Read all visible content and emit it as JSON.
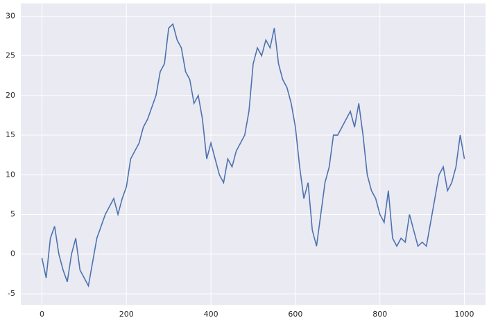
{
  "chart_data": {
    "type": "line",
    "x": [
      0,
      10,
      20,
      30,
      40,
      50,
      60,
      70,
      80,
      90,
      100,
      110,
      120,
      130,
      140,
      150,
      160,
      170,
      180,
      190,
      200,
      210,
      220,
      230,
      240,
      250,
      260,
      270,
      280,
      290,
      300,
      310,
      320,
      330,
      340,
      350,
      360,
      370,
      380,
      390,
      400,
      410,
      420,
      430,
      440,
      450,
      460,
      470,
      480,
      490,
      500,
      510,
      520,
      530,
      540,
      550,
      560,
      570,
      580,
      590,
      600,
      610,
      620,
      630,
      640,
      650,
      660,
      670,
      680,
      690,
      700,
      710,
      720,
      730,
      740,
      750,
      760,
      770,
      780,
      790,
      800,
      810,
      820,
      830,
      840,
      850,
      860,
      870,
      880,
      890,
      900,
      910,
      920,
      930,
      940,
      950,
      960,
      970,
      980,
      990,
      1000
    ],
    "series": [
      {
        "color": "#4c72b0",
        "values": [
          -0.5,
          -3,
          2,
          3.5,
          0,
          -2,
          -3.5,
          0,
          2,
          -2,
          -3,
          -4,
          -1,
          2,
          3.5,
          5,
          6,
          7,
          5,
          7,
          8.5,
          12,
          13,
          14,
          16,
          17,
          18.5,
          20,
          23,
          24,
          28.5,
          29,
          27,
          26,
          23,
          22,
          19,
          20,
          17,
          12,
          14,
          12,
          10,
          9,
          12,
          11,
          13,
          14,
          15,
          18,
          24,
          26,
          25,
          27,
          26,
          28.5,
          24,
          22,
          21,
          19,
          16,
          11,
          7,
          9,
          3,
          1,
          5,
          9,
          11,
          15,
          15,
          16,
          17,
          18,
          16,
          19,
          15,
          10,
          8,
          7,
          5,
          4,
          8,
          2,
          1,
          2,
          1.5,
          5,
          3,
          1,
          1.5,
          1,
          4,
          7,
          10,
          11,
          8,
          9,
          11,
          15,
          12
        ]
      }
    ],
    "xlim": [
      -50,
      1050
    ],
    "ylim": [
      -6.4,
      31.6
    ],
    "xticks": [
      0,
      200,
      400,
      600,
      800,
      1000
    ],
    "yticks": [
      -5,
      0,
      5,
      10,
      15,
      20,
      25,
      30
    ],
    "grid": true
  }
}
